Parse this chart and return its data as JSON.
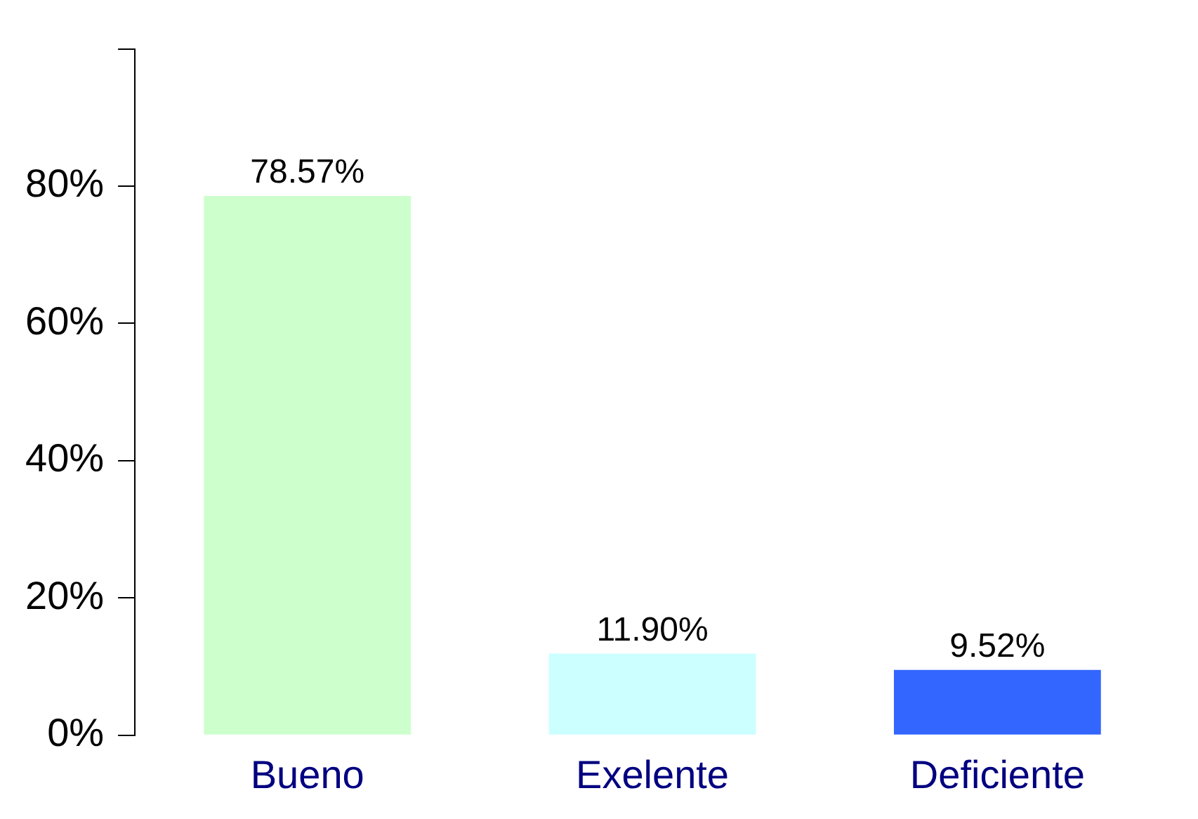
{
  "chart_data": {
    "type": "bar",
    "categories": [
      "Bueno",
      "Exelente",
      "Deficiente"
    ],
    "values": [
      78.57,
      11.9,
      9.52
    ],
    "colors": [
      "#ccffcc",
      "#ccffff",
      "#3366ff"
    ],
    "value_labels": [
      "78.57%",
      "11.90%",
      "9.52%"
    ],
    "ylim": [
      0,
      100
    ],
    "yticks": [
      {
        "value": 0,
        "label": "0%"
      },
      {
        "value": 20,
        "label": "20%"
      },
      {
        "value": 40,
        "label": "40%"
      },
      {
        "value": 60,
        "label": "60%"
      },
      {
        "value": 80,
        "label": "80%"
      },
      {
        "value": 100,
        "label": null
      }
    ],
    "grid": false,
    "legend": false
  }
}
